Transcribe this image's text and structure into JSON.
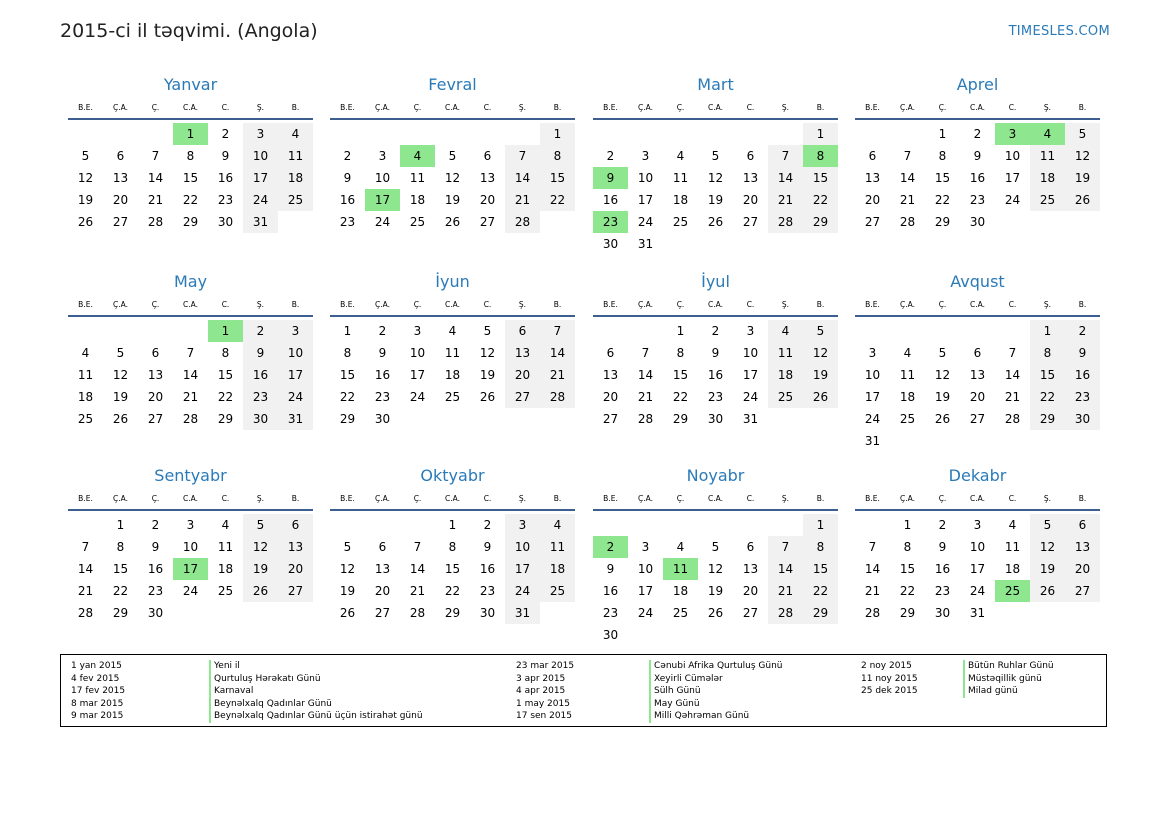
{
  "header": {
    "title": "2015-ci il təqvimi. (Angola)",
    "site": "TIMESLES.COM"
  },
  "weekdays": [
    "B.E.",
    "Ç.A.",
    "Ç.",
    "C.A.",
    "C.",
    "Ş.",
    "B."
  ],
  "months": [
    {
      "name": "Yanvar",
      "first": 3,
      "days": 31,
      "holidays": [
        1
      ]
    },
    {
      "name": "Fevral",
      "first": 6,
      "days": 28,
      "holidays": [
        4,
        17
      ]
    },
    {
      "name": "Mart",
      "first": 6,
      "days": 31,
      "holidays": [
        8,
        9,
        23
      ]
    },
    {
      "name": "Aprel",
      "first": 2,
      "days": 30,
      "holidays": [
        3,
        4
      ]
    },
    {
      "name": "May",
      "first": 4,
      "days": 31,
      "holidays": [
        1
      ]
    },
    {
      "name": "İyun",
      "first": 0,
      "days": 30,
      "holidays": []
    },
    {
      "name": "İyul",
      "first": 2,
      "days": 31,
      "holidays": []
    },
    {
      "name": "Avqust",
      "first": 5,
      "days": 31,
      "holidays": []
    },
    {
      "name": "Sentyabr",
      "first": 1,
      "days": 30,
      "holidays": [
        17
      ]
    },
    {
      "name": "Oktyabr",
      "first": 3,
      "days": 31,
      "holidays": []
    },
    {
      "name": "Noyabr",
      "first": 6,
      "days": 30,
      "holidays": [
        2,
        11
      ]
    },
    {
      "name": "Dekabr",
      "first": 1,
      "days": 31,
      "holidays": [
        25
      ]
    }
  ],
  "legend": [
    {
      "date": "1 yan 2015",
      "name": "Yeni il"
    },
    {
      "date": "4 fev 2015",
      "name": "Qurtuluş Hərəkatı Günü"
    },
    {
      "date": "17 fev 2015",
      "name": "Karnaval"
    },
    {
      "date": "8 mar 2015",
      "name": "Beynəlxalq Qadınlar Günü"
    },
    {
      "date": "9 mar 2015",
      "name": "Beynəlxalq Qadınlar Günü üçün istirahət günü"
    },
    {
      "date": "23 mar 2015",
      "name": "Cənubi Afrika Qurtuluş Günü"
    },
    {
      "date": "3 apr 2015",
      "name": "Xeyirli Cümələr"
    },
    {
      "date": "4 apr 2015",
      "name": "Sülh Günü"
    },
    {
      "date": "1 may 2015",
      "name": "May Günü"
    },
    {
      "date": "17 sen 2015",
      "name": "Milli Qəhrəman Günü"
    },
    {
      "date": "2 noy 2015",
      "name": "Bütün Ruhlar Günü"
    },
    {
      "date": "11 noy 2015",
      "name": "Müstəqillik günü"
    },
    {
      "date": "25 dek 2015",
      "name": "Milad günü"
    }
  ],
  "colors": {
    "accent": "#2a7ab8",
    "holiday": "#8ee78e",
    "weekend": "#f1f1f1",
    "rule": "#3d5f8f"
  }
}
